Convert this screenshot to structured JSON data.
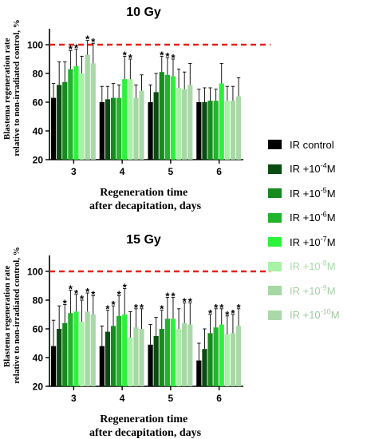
{
  "chart_data": [
    {
      "type": "bar",
      "title": "10 Gy",
      "ylabel": "Blastema regeneration rate relative to non-irradiated control, %",
      "xlabel": "Regeneration time after decapitation, days",
      "categories": [
        "3",
        "4",
        "5",
        "6"
      ],
      "ylim": [
        20,
        110
      ],
      "yticks": [
        20,
        40,
        60,
        80,
        100
      ],
      "reference_line": {
        "y": 100,
        "style": "dashed",
        "color": "#e8221a"
      },
      "series": [
        {
          "name": "IR control",
          "values": [
            63,
            60,
            60,
            60
          ],
          "errors": [
            10,
            11,
            12,
            9
          ],
          "stars": [
            "",
            "",
            "",
            ""
          ]
        },
        {
          "name": "IR +10^-4M",
          "values": [
            72,
            62,
            67,
            60
          ],
          "errors": [
            16,
            9,
            13,
            10
          ],
          "stars": [
            "",
            "",
            "",
            ""
          ]
        },
        {
          "name": "IR +10^-5M",
          "values": [
            74,
            63,
            81,
            61
          ],
          "errors": [
            14,
            10,
            11,
            9
          ],
          "stars": [
            "",
            "",
            "*",
            ""
          ]
        },
        {
          "name": "IR +10^-6M",
          "values": [
            83,
            63,
            79,
            61
          ],
          "errors": [
            13,
            9,
            12,
            8
          ],
          "stars": [
            "*",
            "",
            "*",
            ""
          ]
        },
        {
          "name": "IR +10^-7M",
          "values": [
            85,
            76,
            78,
            73
          ],
          "errors": [
            12,
            16,
            12,
            14
          ],
          "stars": [
            "*",
            "*",
            "*",
            ""
          ]
        },
        {
          "name": "IR +10^-8M",
          "values": [
            80,
            76,
            70,
            61
          ],
          "errors": [
            12,
            14,
            13,
            10
          ],
          "stars": [
            "",
            "*",
            "",
            ""
          ]
        },
        {
          "name": "IR +10^-9M",
          "values": [
            93,
            63,
            69,
            61
          ],
          "errors": [
            10,
            9,
            12,
            10
          ],
          "stars": [
            "*",
            "",
            "",
            ""
          ]
        },
        {
          "name": "IR +10^-10M",
          "values": [
            87,
            68,
            72,
            64
          ],
          "errors": [
            14,
            11,
            15,
            13
          ],
          "stars": [
            "*",
            "",
            "",
            ""
          ]
        }
      ]
    },
    {
      "type": "bar",
      "title": "15 Gy",
      "ylabel": "Blastema regeneration rate relative to non-irradiated control, %",
      "xlabel": "Regeneration time after decapitation, days",
      "categories": [
        "3",
        "4",
        "5",
        "6"
      ],
      "ylim": [
        20,
        110
      ],
      "yticks": [
        20,
        40,
        60,
        80,
        100
      ],
      "reference_line": {
        "y": 100,
        "style": "dashed",
        "color": "#e8221a"
      },
      "series": [
        {
          "name": "IR control",
          "values": [
            48,
            48,
            49,
            38
          ],
          "errors": [
            18,
            14,
            14,
            12
          ],
          "stars": [
            "",
            "",
            "",
            ""
          ]
        },
        {
          "name": "IR +10^-4M",
          "values": [
            60,
            58,
            55,
            46
          ],
          "errors": [
            16,
            15,
            13,
            14
          ],
          "stars": [
            "",
            "*",
            "",
            ""
          ]
        },
        {
          "name": "IR +10^-5M",
          "values": [
            64,
            62,
            60,
            57
          ],
          "errors": [
            13,
            14,
            13,
            13
          ],
          "stars": [
            "*",
            "*",
            "*",
            "*"
          ]
        },
        {
          "name": "IR +10^-6M",
          "values": [
            71,
            69,
            67,
            61
          ],
          "errors": [
            16,
            14,
            15,
            13
          ],
          "stars": [
            "*",
            "*",
            "*",
            "*"
          ]
        },
        {
          "name": "IR +10^-7M",
          "values": [
            72,
            70,
            67,
            63
          ],
          "errors": [
            12,
            18,
            15,
            11
          ],
          "stars": [
            "*",
            "*",
            "*",
            "*"
          ]
        },
        {
          "name": "IR +10^-8M",
          "values": [
            65,
            54,
            60,
            56
          ],
          "errors": [
            15,
            18,
            14,
            13
          ],
          "stars": [
            "*",
            "",
            "",
            "*"
          ]
        },
        {
          "name": "IR +10^-9M",
          "values": [
            72,
            61,
            64,
            57
          ],
          "errors": [
            13,
            13,
            14,
            13
          ],
          "stars": [
            "*",
            "*",
            "*",
            "*"
          ]
        },
        {
          "name": "IR +10^-10M",
          "values": [
            70,
            60,
            63,
            62
          ],
          "errors": [
            13,
            14,
            15,
            12
          ],
          "stars": [
            "*",
            "*",
            "*",
            "*"
          ]
        }
      ]
    }
  ],
  "legend": [
    {
      "base": "IR control",
      "exp": "",
      "suffix": "",
      "color": "#000000",
      "text_color": "#000000"
    },
    {
      "base": "IR +10",
      "exp": "-4",
      "suffix": "M",
      "color": "#0a4d10",
      "text_color": "#000000"
    },
    {
      "base": "IR +10",
      "exp": "-5",
      "suffix": "M",
      "color": "#178a1f",
      "text_color": "#000000"
    },
    {
      "base": "IR +10",
      "exp": "-6",
      "suffix": "M",
      "color": "#20b52c",
      "text_color": "#000000"
    },
    {
      "base": "IR +10",
      "exp": "-7",
      "suffix": "M",
      "color": "#2cf23a",
      "text_color": "#000000"
    },
    {
      "base": "IR +10",
      "exp": "-8",
      "suffix": "M",
      "color": "#a8f2a6",
      "text_color": "#a6dca6"
    },
    {
      "base": "IR +10",
      "exp": "-9",
      "suffix": "M",
      "color": "#a6d8a4",
      "text_color": "#a6d0a6"
    },
    {
      "base": "IR +10",
      "exp": "-10",
      "suffix": "M",
      "color": "#aad9a8",
      "text_color": "#9ecb9e"
    }
  ]
}
